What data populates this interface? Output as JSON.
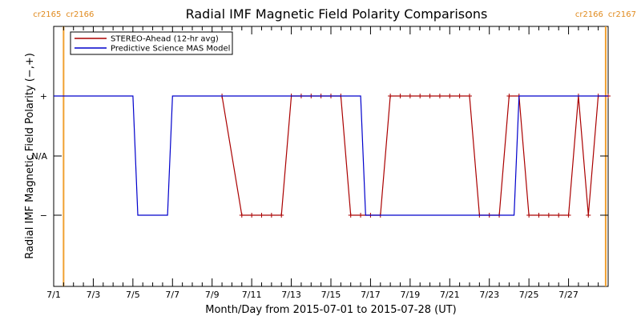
{
  "chart_data": {
    "type": "line",
    "title": "Radial IMF Magnetic Field Polarity Comparisons",
    "xlabel": "Month/Day from 2015-07-01 to 2015-07-28 (UT)",
    "ylabel": "Radial IMF Magnetic Field Polarity (−,+)",
    "xlim": [
      "2015-07-01T00:00",
      "2015-07-29T00:00"
    ],
    "x_ticks": [
      "7/1",
      "7/3",
      "7/5",
      "7/7",
      "7/9",
      "7/11",
      "7/13",
      "7/15",
      "7/17",
      "7/19",
      "7/21",
      "7/23",
      "7/25",
      "7/27"
    ],
    "y_categories": [
      "−",
      "N/A",
      "+"
    ],
    "y_tick_labels": [
      "−",
      "N/A",
      "+"
    ],
    "legend_position": "top-left",
    "colors": {
      "stereo": "#aa0000",
      "model": "#0000cc",
      "carrington": "#f0a030",
      "cr_text": "#e08a1e"
    },
    "carrington_markers": [
      {
        "label": "cr2165",
        "x": "2015-07-01T12:00",
        "label_side": "left",
        "line": true
      },
      {
        "label": "cr2166",
        "x": "2015-07-01T12:00",
        "label_side": "right",
        "line": false
      },
      {
        "label": "cr2166",
        "x": "2015-07-28T21:00",
        "label_side": "left",
        "line": false
      },
      {
        "label": "cr2167",
        "x": "2015-07-28T21:00",
        "label_side": "right",
        "line": true
      }
    ],
    "series": [
      {
        "name": "STEREO-Ahead (12-hr avg)",
        "marker": "+",
        "points": [
          [
            "2015-07-09T12:00",
            1
          ],
          [
            "2015-07-10T12:00",
            -1
          ],
          [
            "2015-07-11T00:00",
            -1
          ],
          [
            "2015-07-11T12:00",
            -1
          ],
          [
            "2015-07-12T00:00",
            -1
          ],
          [
            "2015-07-12T12:00",
            -1
          ],
          [
            "2015-07-13T00:00",
            1
          ],
          [
            "2015-07-13T12:00",
            1
          ],
          [
            "2015-07-14T00:00",
            1
          ],
          [
            "2015-07-14T12:00",
            1
          ],
          [
            "2015-07-15T00:00",
            1
          ],
          [
            "2015-07-15T12:00",
            1
          ],
          [
            "2015-07-16T00:00",
            -1
          ],
          [
            "2015-07-16T12:00",
            -1
          ],
          [
            "2015-07-17T00:00",
            -1
          ],
          [
            "2015-07-17T12:00",
            -1
          ],
          [
            "2015-07-18T00:00",
            1
          ],
          [
            "2015-07-18T12:00",
            1
          ],
          [
            "2015-07-19T00:00",
            1
          ],
          [
            "2015-07-19T12:00",
            1
          ],
          [
            "2015-07-20T00:00",
            1
          ],
          [
            "2015-07-20T12:00",
            1
          ],
          [
            "2015-07-21T00:00",
            1
          ],
          [
            "2015-07-21T12:00",
            1
          ],
          [
            "2015-07-22T00:00",
            1
          ],
          [
            "2015-07-22T12:00",
            -1
          ],
          [
            "2015-07-23T00:00",
            -1
          ],
          [
            "2015-07-23T12:00",
            -1
          ],
          [
            "2015-07-24T00:00",
            1
          ],
          [
            "2015-07-24T12:00",
            1
          ],
          [
            "2015-07-25T00:00",
            -1
          ],
          [
            "2015-07-25T12:00",
            -1
          ],
          [
            "2015-07-26T00:00",
            -1
          ],
          [
            "2015-07-26T12:00",
            -1
          ],
          [
            "2015-07-27T00:00",
            -1
          ],
          [
            "2015-07-27T12:00",
            1
          ],
          [
            "2015-07-28T00:00",
            -1
          ],
          [
            "2015-07-28T12:00",
            1
          ],
          [
            "2015-07-29T00:00",
            1
          ]
        ]
      },
      {
        "name": "Predictive Science MAS Model",
        "marker": "none",
        "points": [
          [
            "2015-07-01T00:00",
            1
          ],
          [
            "2015-07-05T00:00",
            1
          ],
          [
            "2015-07-05T06:00",
            -1
          ],
          [
            "2015-07-06T18:00",
            -1
          ],
          [
            "2015-07-07T00:00",
            1
          ],
          [
            "2015-07-16T12:00",
            1
          ],
          [
            "2015-07-16T18:00",
            -1
          ],
          [
            "2015-07-24T06:00",
            -1
          ],
          [
            "2015-07-24T12:00",
            1
          ],
          [
            "2015-07-29T00:00",
            1
          ]
        ]
      }
    ]
  }
}
